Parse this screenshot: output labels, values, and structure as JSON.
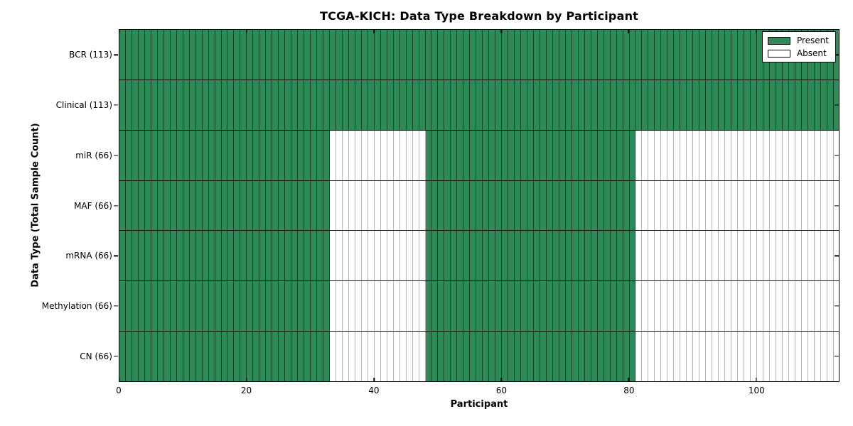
{
  "chart_data": {
    "type": "heatmap",
    "title": "TCGA-KICH: Data Type Breakdown by Participant",
    "xlabel": "Participant",
    "ylabel": "Data Type (Total Sample Count)",
    "x_ticks": [
      0,
      20,
      40,
      60,
      80,
      100
    ],
    "n_participants": 113,
    "x_range": [
      0,
      113
    ],
    "grid": "cell-borders",
    "legend_position": "upper-right",
    "colors": {
      "present": "#2e8b57",
      "absent": "#ffffff"
    },
    "legend": [
      {
        "label": "Present",
        "key": "present"
      },
      {
        "label": "Absent",
        "key": "absent"
      }
    ],
    "rows": [
      {
        "label": "BCR (113)",
        "present_count": 113,
        "present_ranges": [
          [
            0,
            113
          ]
        ]
      },
      {
        "label": "Clinical (113)",
        "present_count": 113,
        "present_ranges": [
          [
            0,
            113
          ]
        ]
      },
      {
        "label": "miR (66)",
        "present_count": 66,
        "present_ranges": [
          [
            0,
            33
          ],
          [
            48,
            81
          ]
        ]
      },
      {
        "label": "MAF (66)",
        "present_count": 66,
        "present_ranges": [
          [
            0,
            33
          ],
          [
            48,
            81
          ]
        ]
      },
      {
        "label": "mRNA (66)",
        "present_count": 66,
        "present_ranges": [
          [
            0,
            33
          ],
          [
            48,
            81
          ]
        ]
      },
      {
        "label": "Methylation (66)",
        "present_count": 66,
        "present_ranges": [
          [
            0,
            33
          ],
          [
            48,
            81
          ]
        ]
      },
      {
        "label": "CN (66)",
        "present_count": 66,
        "present_ranges": [
          [
            0,
            33
          ],
          [
            48,
            81
          ]
        ]
      }
    ]
  }
}
